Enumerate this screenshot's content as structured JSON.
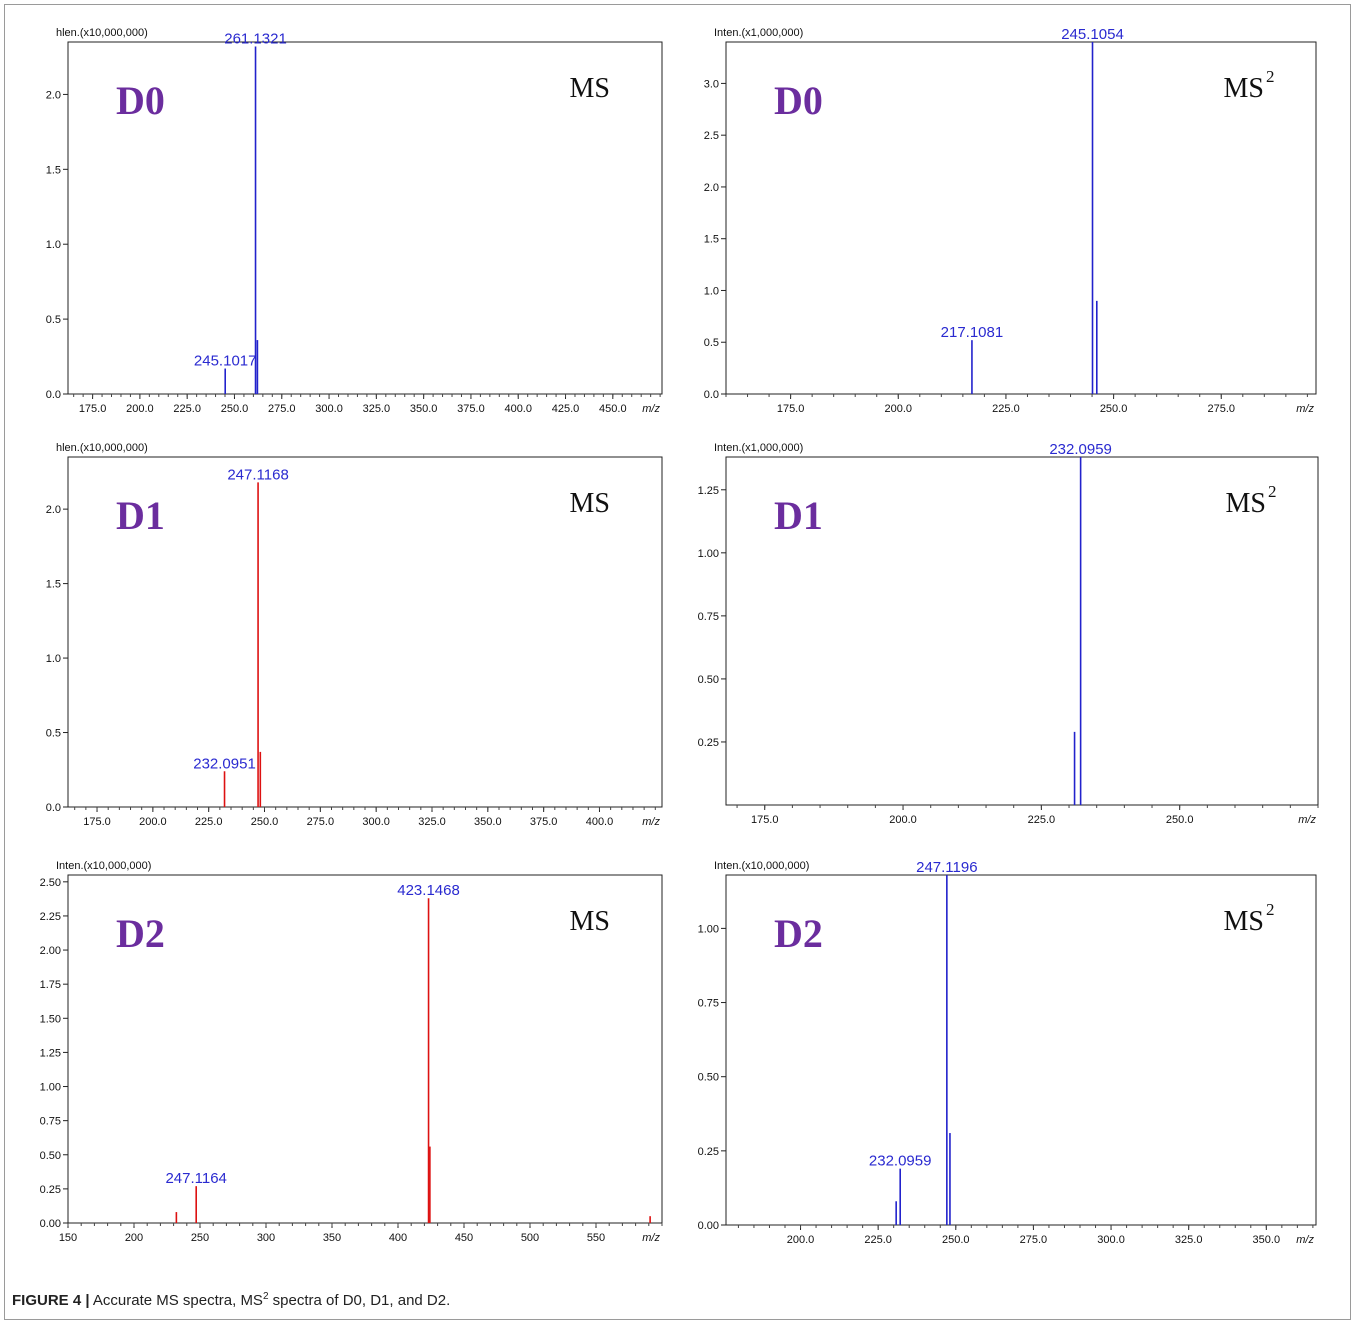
{
  "figure": {
    "caption_label": "FIGURE 4 |",
    "caption_text_a": " Accurate MS spectra, MS",
    "caption_sup": "2",
    "caption_text_b": " spectra of D0, D1, and D2."
  },
  "chart_data": [
    {
      "id": "d0-ms",
      "type": "bar",
      "sample": "D0",
      "mode": "MS",
      "mode_sup": "",
      "ylabel": "hlen.(x10,000,000)",
      "xlabel": "m/z",
      "color": "#2222cc",
      "xlim": [
        162,
        476
      ],
      "ylim": [
        0,
        2.35
      ],
      "xticks": [
        175,
        200,
        225,
        250,
        275,
        300,
        325,
        350,
        375,
        400,
        425,
        450
      ],
      "xtick_labels": [
        "175.0",
        "200.0",
        "225.0",
        "250.0",
        "275.0",
        "300.0",
        "325.0",
        "350.0",
        "375.0",
        "400.0",
        "425.0",
        "450.0"
      ],
      "yticks": [
        0,
        0.5,
        1.0,
        1.5,
        2.0
      ],
      "ytick_labels": [
        "0.0",
        "0.5",
        "1.0",
        "1.5",
        "2.0"
      ],
      "peaks": [
        {
          "mz": 245.1017,
          "intensity": 0.17,
          "label": "245.1017"
        },
        {
          "mz": 261.1321,
          "intensity": 2.32,
          "label": "261.1321"
        },
        {
          "mz": 262.13,
          "intensity": 0.36,
          "label": ""
        }
      ]
    },
    {
      "id": "d0-ms2",
      "type": "bar",
      "sample": "D0",
      "mode": "MS",
      "mode_sup": "2",
      "ylabel": "Inten.(x1,000,000)",
      "xlabel": "m/z",
      "color": "#2222cc",
      "xlim": [
        160,
        297
      ],
      "ylim": [
        0,
        3.4
      ],
      "xticks": [
        175,
        200,
        225,
        250,
        275
      ],
      "xtick_labels": [
        "175.0",
        "200.0",
        "225.0",
        "250.0",
        "275.0"
      ],
      "yticks": [
        0,
        0.5,
        1.0,
        1.5,
        2.0,
        2.5,
        3.0
      ],
      "ytick_labels": [
        "0.0",
        "0.5",
        "1.0",
        "1.5",
        "2.0",
        "2.5",
        "3.0"
      ],
      "peaks": [
        {
          "mz": 217.1081,
          "intensity": 0.52,
          "label": "217.1081"
        },
        {
          "mz": 245.1054,
          "intensity": 3.4,
          "label": "245.1054"
        },
        {
          "mz": 246.1,
          "intensity": 0.9,
          "label": ""
        }
      ]
    },
    {
      "id": "d1-ms",
      "type": "bar",
      "sample": "D1",
      "mode": "MS",
      "mode_sup": "",
      "ylabel": "hlen.(x10,000,000)",
      "xlabel": "m/z",
      "color": "#dd1111",
      "xlim": [
        162,
        428
      ],
      "ylim": [
        0,
        2.35
      ],
      "xticks": [
        175,
        200,
        225,
        250,
        275,
        300,
        325,
        350,
        375,
        400
      ],
      "xtick_labels": [
        "175.0",
        "200.0",
        "225.0",
        "250.0",
        "275.0",
        "300.0",
        "325.0",
        "350.0",
        "375.0",
        "400.0"
      ],
      "yticks": [
        0,
        0.5,
        1.0,
        1.5,
        2.0
      ],
      "ytick_labels": [
        "0.0",
        "0.5",
        "1.0",
        "1.5",
        "2.0"
      ],
      "peaks": [
        {
          "mz": 232.0951,
          "intensity": 0.24,
          "label": "232.0951"
        },
        {
          "mz": 247.1168,
          "intensity": 2.18,
          "label": "247.1168"
        },
        {
          "mz": 248.12,
          "intensity": 0.37,
          "label": ""
        }
      ]
    },
    {
      "id": "d1-ms2",
      "type": "bar",
      "sample": "D1",
      "mode": "MS",
      "mode_sup": "2",
      "ylabel": "Inten.(x1,000,000)",
      "xlabel": "m/z",
      "color": "#2222cc",
      "xlim": [
        168,
        275
      ],
      "ylim": [
        0,
        1.38
      ],
      "xticks": [
        175,
        200,
        225,
        250
      ],
      "xtick_labels": [
        "175.0",
        "200.0",
        "225.0",
        "250.0"
      ],
      "yticks": [
        0.25,
        0.5,
        0.75,
        1.0,
        1.25
      ],
      "ytick_labels": [
        "0.25",
        "0.50",
        "0.75",
        "1.00",
        "1.25"
      ],
      "peaks": [
        {
          "mz": 231.0,
          "intensity": 0.29,
          "label": ""
        },
        {
          "mz": 232.0959,
          "intensity": 1.38,
          "label": "232.0959"
        }
      ]
    },
    {
      "id": "d2-ms",
      "type": "bar",
      "sample": "D2",
      "mode": "MS",
      "mode_sup": "",
      "ylabel": "Inten.(x10,000,000)",
      "xlabel": "m/z",
      "color": "#dd1111",
      "xlim": [
        150,
        600
      ],
      "ylim": [
        0,
        2.55
      ],
      "xticks": [
        150,
        200,
        250,
        300,
        350,
        400,
        450,
        500,
        550
      ],
      "xtick_labels": [
        "150",
        "200",
        "250",
        "300",
        "350",
        "400",
        "450",
        "500",
        "550"
      ],
      "yticks": [
        0,
        0.25,
        0.5,
        0.75,
        1.0,
        1.25,
        1.5,
        1.75,
        2.0,
        2.25,
        2.5
      ],
      "ytick_labels": [
        "0.00",
        "0.25",
        "0.50",
        "0.75",
        "1.00",
        "1.25",
        "1.50",
        "1.75",
        "2.00",
        "2.25",
        "2.50"
      ],
      "peaks": [
        {
          "mz": 232.1,
          "intensity": 0.08,
          "label": ""
        },
        {
          "mz": 247.1164,
          "intensity": 0.27,
          "label": "247.1164"
        },
        {
          "mz": 423.1468,
          "intensity": 2.38,
          "label": "423.1468"
        },
        {
          "mz": 424.15,
          "intensity": 0.56,
          "label": ""
        },
        {
          "mz": 591.0,
          "intensity": 0.05,
          "label": ""
        }
      ]
    },
    {
      "id": "d2-ms2",
      "type": "bar",
      "sample": "D2",
      "mode": "MS",
      "mode_sup": "2",
      "ylabel": "Inten.(x10,000,000)",
      "xlabel": "m/z",
      "color": "#2222cc",
      "xlim": [
        176,
        366
      ],
      "ylim": [
        0,
        1.18
      ],
      "xticks": [
        200,
        225,
        250,
        275,
        300,
        325,
        350
      ],
      "xtick_labels": [
        "200.0",
        "225.0",
        "250.0",
        "275.0",
        "300.0",
        "325.0",
        "350.0"
      ],
      "yticks": [
        0,
        0.25,
        0.5,
        0.75,
        1.0
      ],
      "ytick_labels": [
        "0.00",
        "0.25",
        "0.50",
        "0.75",
        "1.00"
      ],
      "peaks": [
        {
          "mz": 230.8,
          "intensity": 0.08,
          "label": ""
        },
        {
          "mz": 232.0959,
          "intensity": 0.19,
          "label": "232.0959"
        },
        {
          "mz": 247.1196,
          "intensity": 1.18,
          "label": "247.1196"
        },
        {
          "mz": 248.12,
          "intensity": 0.31,
          "label": ""
        }
      ]
    }
  ]
}
